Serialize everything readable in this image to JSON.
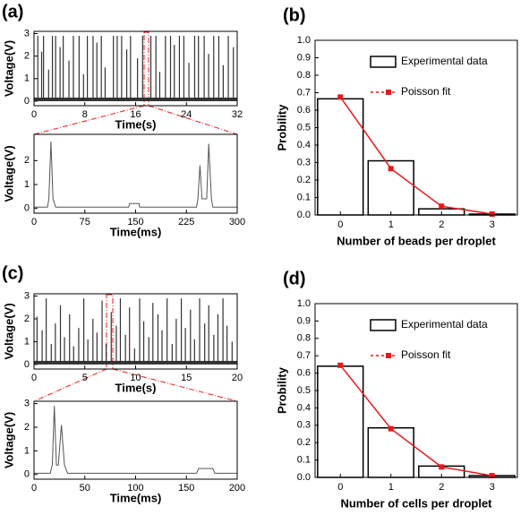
{
  "chart_data": [
    {
      "type": "spikes",
      "label": "(a)",
      "xlabel": "Time(s)",
      "ylabel": "Voltage(V)",
      "color": "#333333",
      "xlim": [
        0,
        32
      ],
      "ylim": [
        -0.2,
        3.1
      ],
      "xticks": [
        0,
        8,
        16,
        24,
        32
      ],
      "yticks": [
        0,
        1,
        2,
        3
      ],
      "x": [
        0.6,
        1.2,
        1.5,
        2.3,
        2.9,
        3.4,
        4.1,
        4.6,
        5.5,
        6.2,
        7.1,
        7.8,
        8.4,
        9.3,
        9.9,
        10.6,
        11.2,
        12.5,
        13.1,
        13.8,
        14.6,
        15.2,
        16.3,
        17.1,
        18.4,
        19.2,
        19.8,
        20.7,
        21.5,
        22.1,
        22.9,
        23.6,
        24.4,
        25.3,
        25.9,
        26.8,
        27.5,
        28.3,
        29.1,
        29.8,
        30.6,
        31.4
      ],
      "values": [
        2.9,
        2.2,
        2.9,
        1.4,
        2.9,
        2.9,
        2.4,
        2.9,
        1.8,
        2.9,
        2.9,
        1.2,
        2.9,
        2.9,
        2.6,
        2.9,
        1.5,
        2.9,
        2.9,
        2.9,
        2.3,
        2.9,
        1.9,
        2.9,
        2.9,
        2.9,
        1.3,
        2.9,
        2.9,
        2.5,
        2.9,
        2.9,
        1.7,
        2.9,
        2.9,
        2.9,
        2.1,
        2.9,
        2.9,
        1.6,
        2.9,
        2.4
      ]
    },
    {
      "type": "line",
      "xlabel": "Time(ms)",
      "ylabel": "Voltage(V)",
      "color": "#555555",
      "xlim": [
        0,
        300
      ],
      "ylim": [
        -0.2,
        3.1
      ],
      "xticks": [
        0,
        75,
        150,
        225,
        300
      ],
      "yticks": [
        0,
        1,
        2
      ],
      "x": [
        0,
        20,
        22,
        25,
        28,
        32,
        140,
        141,
        155,
        156,
        240,
        242,
        245,
        248,
        251,
        255,
        258,
        262,
        264,
        300
      ],
      "values": [
        0.05,
        0.05,
        0.4,
        2.8,
        0.4,
        0.05,
        0.05,
        0.2,
        0.2,
        0.05,
        0.05,
        0.4,
        1.8,
        0.4,
        0.4,
        0.4,
        2.7,
        0.4,
        0.05,
        0.05
      ]
    },
    {
      "type": "bar",
      "label": "(b)",
      "xlabel": "Number of beads per droplet",
      "ylabel": "Probility",
      "categories": [
        "0",
        "1",
        "2",
        "3"
      ],
      "ylim": [
        0,
        1
      ],
      "yticks": [
        {
          "value": 0,
          "label": "0.0"
        },
        0.1,
        0.2,
        0.3,
        0.4,
        0.5,
        0.6,
        0.7,
        0.8,
        0.9,
        {
          "value": 1,
          "label": "1.0"
        }
      ],
      "series": [
        {
          "name": "Experimental data",
          "mark": "bar",
          "color": "#000000",
          "values": [
            0.665,
            0.31,
            0.035,
            0.005
          ]
        },
        {
          "name": "Poisson fit",
          "mark": "line",
          "color": "#e8191c",
          "values": [
            0.675,
            0.265,
            0.05,
            0.005
          ]
        }
      ]
    },
    {
      "type": "spikes",
      "label": "(c)",
      "xlabel": "Time(s)",
      "ylabel": "Voltage(V)",
      "color": "#333333",
      "xlim": [
        0,
        20
      ],
      "ylim": [
        -0.2,
        3.1
      ],
      "xticks": [
        0,
        5,
        10,
        15,
        20
      ],
      "yticks": [
        0,
        1,
        2,
        3
      ],
      "x": [
        0.3,
        0.8,
        1.2,
        1.7,
        2.1,
        2.6,
        3.0,
        3.5,
        3.9,
        4.4,
        4.9,
        5.3,
        5.8,
        6.2,
        6.7,
        7.1,
        7.6,
        8.1,
        8.5,
        9.0,
        9.4,
        9.9,
        10.4,
        10.8,
        11.3,
        11.7,
        12.2,
        12.6,
        13.1,
        13.6,
        14.0,
        14.5,
        14.9,
        15.4,
        15.8,
        16.3,
        16.8,
        17.2,
        17.7,
        18.1,
        18.6,
        19.0,
        19.5
      ],
      "values": [
        2.1,
        1.5,
        2.9,
        0.9,
        1.8,
        2.6,
        1.2,
        2.2,
        0.8,
        1.6,
        2.9,
        1.1,
        2.0,
        1.4,
        2.8,
        0.9,
        2.3,
        1.7,
        2.9,
        1.3,
        2.5,
        0.7,
        2.9,
        1.9,
        1.2,
        2.7,
        2.2,
        1.5,
        2.9,
        0.9,
        2.0,
        2.9,
        1.6,
        2.4,
        1.1,
        2.9,
        1.8,
        2.6,
        1.3,
        2.2,
        2.9,
        1.7,
        1.0
      ]
    },
    {
      "type": "line",
      "xlabel": "Time(ms)",
      "ylabel": "Voltage(V)",
      "color": "#555555",
      "xlim": [
        0,
        200
      ],
      "ylim": [
        -0.2,
        3.1
      ],
      "xticks": [
        0,
        50,
        100,
        150,
        200
      ],
      "yticks": [
        0,
        1,
        2,
        3
      ],
      "x": [
        0,
        16,
        18,
        20,
        22,
        24,
        27,
        30,
        33,
        160,
        162,
        176,
        178,
        200
      ],
      "values": [
        0.05,
        0.05,
        0.4,
        2.9,
        0.4,
        0.4,
        2.1,
        0.4,
        0.05,
        0.05,
        0.25,
        0.25,
        0.05,
        0.05
      ]
    },
    {
      "type": "bar",
      "label": "(d)",
      "xlabel": "Number of cells per droplet",
      "ylabel": "Probility",
      "categories": [
        "0",
        "1",
        "2",
        "3"
      ],
      "ylim": [
        0,
        1
      ],
      "yticks": [
        {
          "value": 0,
          "label": "0.0"
        },
        0.1,
        0.2,
        0.3,
        0.4,
        0.5,
        0.6,
        0.7,
        0.8,
        0.9,
        {
          "value": 1,
          "label": "1.0"
        }
      ],
      "series": [
        {
          "name": "Experimental data",
          "mark": "bar",
          "color": "#000000",
          "values": [
            0.64,
            0.285,
            0.065,
            0.01
          ]
        },
        {
          "name": "Poisson fit",
          "mark": "line",
          "color": "#e8191c",
          "values": [
            0.645,
            0.28,
            0.06,
            0.01
          ]
        }
      ]
    }
  ]
}
